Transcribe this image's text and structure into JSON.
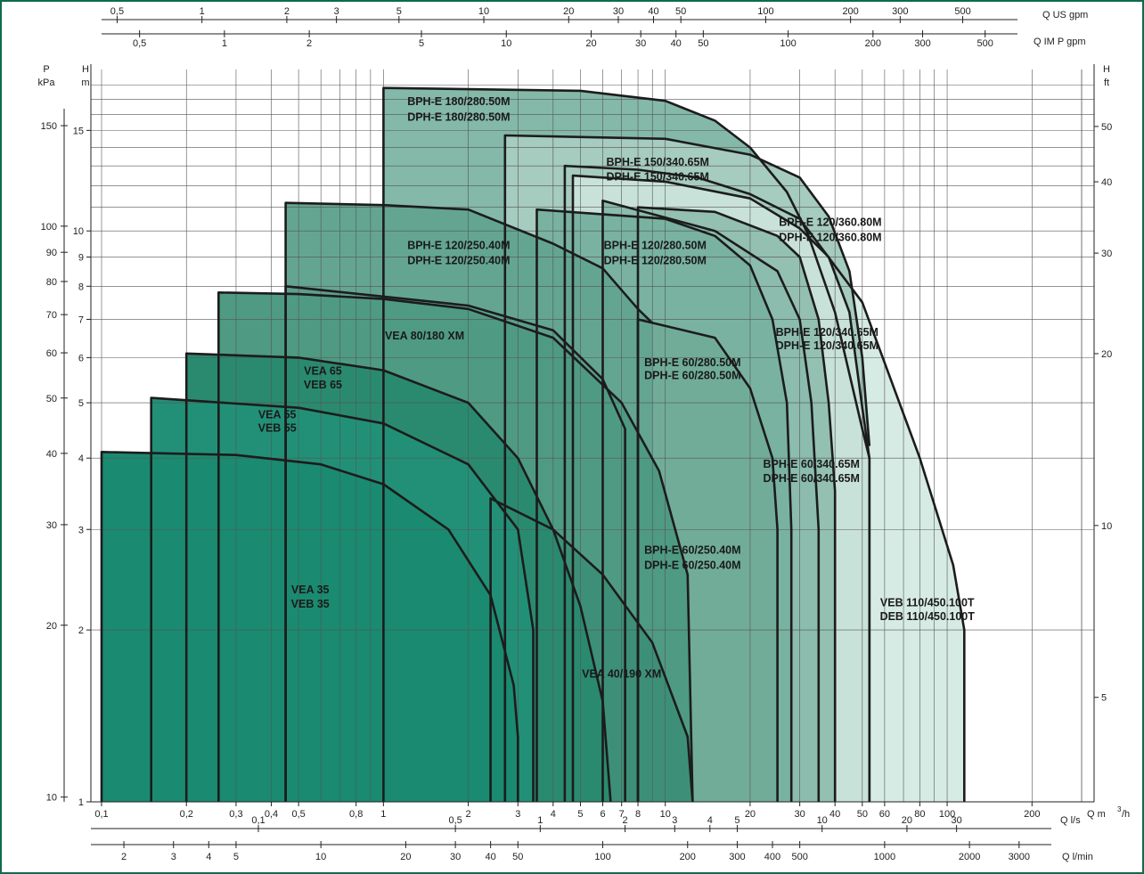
{
  "chart_data": {
    "type": "area",
    "x_axis": {
      "unit": "Q m³/h",
      "scale": "log",
      "range": [
        0.1,
        300
      ],
      "ticks": [
        "0,1",
        "0,2",
        "0,3",
        "0,4",
        "0,5",
        "0,8",
        "1",
        "2",
        "3",
        "4",
        "5",
        "6",
        "7",
        "8",
        "10",
        "20",
        "30",
        "40",
        "50",
        "60",
        "80",
        "100",
        "200"
      ]
    },
    "y_axis": {
      "unit": "H m",
      "scale": "log",
      "range": [
        1,
        18.5
      ],
      "ticks": [
        "1",
        "2",
        "3",
        "4",
        "5",
        "6",
        "7",
        "8",
        "9",
        "10",
        "15"
      ]
    },
    "secondary_axes": {
      "top_us": {
        "label": "Q US gpm",
        "ticks": [
          "0,5",
          "1",
          "2",
          "3",
          "5",
          "10",
          "20",
          "30",
          "40",
          "50",
          "100",
          "200",
          "300",
          "500"
        ]
      },
      "top_imp": {
        "label": "Q IM P gpm",
        "ticks": [
          "0,5",
          "1",
          "2",
          "5",
          "10",
          "20",
          "30",
          "40",
          "50",
          "100",
          "200",
          "300",
          "500"
        ]
      },
      "left_p": {
        "label": "P",
        "unit": "kPa",
        "ticks": [
          "10",
          "20",
          "30",
          "40",
          "50",
          "60",
          "70",
          "80",
          "90",
          "100",
          "150"
        ]
      },
      "right_ft": {
        "label": "H",
        "unit": "ft",
        "ticks": [
          "5",
          "10",
          "20",
          "30",
          "40",
          "50"
        ]
      },
      "bottom_ls": {
        "label": "Q l/s",
        "ticks": [
          "0,1",
          "0,5",
          "1",
          "2",
          "3",
          "4",
          "5",
          "10",
          "20",
          "30"
        ]
      },
      "bottom_lmin": {
        "label": "Q l/min",
        "ticks": [
          "2",
          "3",
          "4",
          "5",
          "10",
          "20",
          "30",
          "40",
          "50",
          "100",
          "200",
          "300",
          "400",
          "500",
          "1000",
          "2000",
          "3000"
        ]
      }
    },
    "grid": true,
    "series": [
      {
        "name": "VEB 110/450.100T DEB 110/450.100T",
        "color": "#d6ebe3",
        "points": [
          [
            4.4,
            13.0
          ],
          [
            8,
            12.8
          ],
          [
            13,
            12.4
          ],
          [
            20,
            11.6
          ],
          [
            30,
            10.5
          ],
          [
            50,
            7.5
          ],
          [
            80,
            4.0
          ],
          [
            105,
            2.6
          ],
          [
            115,
            2.0
          ],
          [
            115,
            1
          ]
        ]
      },
      {
        "name": "BPH-E 180/280.50M DPH-E 180/280.50M",
        "color": "#84b8a8",
        "points": [
          [
            1,
            17.8
          ],
          [
            5,
            17.6
          ],
          [
            10,
            16.9
          ],
          [
            15,
            15.6
          ],
          [
            20,
            14.0
          ],
          [
            27,
            11.7
          ],
          [
            32,
            9.9
          ],
          [
            40,
            7.2
          ],
          [
            50,
            4.5
          ],
          [
            53,
            4.0
          ],
          [
            53,
            1
          ]
        ]
      },
      {
        "name": "BPH-E 150/340.65M DPH-E 150/340.65M",
        "color": "#a6cbbf",
        "points": [
          [
            2.7,
            14.7
          ],
          [
            10,
            14.5
          ],
          [
            20,
            13.6
          ],
          [
            30,
            12.4
          ],
          [
            38,
            10.6
          ],
          [
            45,
            8.5
          ],
          [
            50,
            6.0
          ],
          [
            53,
            4.2
          ]
        ]
      },
      {
        "name": "BPH-E 120/360.80M DPH-E 120/360.80M",
        "color": "#c9e2d9",
        "points": [
          [
            4.7,
            12.5
          ],
          [
            10,
            12.2
          ],
          [
            20,
            11.4
          ],
          [
            30,
            10.1
          ],
          [
            38,
            9.0
          ],
          [
            45,
            7.2
          ],
          [
            50,
            4.9
          ],
          [
            53,
            4.0
          ],
          [
            53,
            1
          ]
        ]
      },
      {
        "name": "BPH-E 120/340.65M DPH-E 120/340.65M",
        "color": "#93c0b1",
        "points": [
          [
            8,
            11.0
          ],
          [
            15,
            10.8
          ],
          [
            25,
            9.8
          ],
          [
            30,
            9.0
          ],
          [
            35,
            7.0
          ],
          [
            38,
            5.0
          ],
          [
            40,
            3.5
          ],
          [
            40,
            1
          ]
        ]
      },
      {
        "name": "BPH-E 60/340.65M DPH-E 60/340.65M",
        "color": "#8bbcad",
        "points": [
          [
            6,
            11.3
          ],
          [
            15,
            10.0
          ],
          [
            25,
            8.5
          ],
          [
            30,
            7.0
          ],
          [
            33,
            5.0
          ],
          [
            35,
            3.0
          ],
          [
            35,
            1
          ]
        ]
      },
      {
        "name": "BPH-E 120/280.50M DPH-E 120/280.50M",
        "color": "#79b2a0",
        "points": [
          [
            3.5,
            10.9
          ],
          [
            10,
            10.5
          ],
          [
            15,
            9.8
          ],
          [
            20,
            8.7
          ],
          [
            24,
            7.0
          ],
          [
            27,
            5.0
          ],
          [
            28,
            3.0
          ],
          [
            28,
            1
          ]
        ]
      },
      {
        "name": "BPH-E 60/280.50M DPH-E 60/280.50M",
        "color": "#71ac99",
        "points": [
          [
            8,
            7.0
          ],
          [
            15,
            6.5
          ],
          [
            20,
            5.3
          ],
          [
            24,
            4.0
          ],
          [
            25,
            3.0
          ],
          [
            25,
            1
          ]
        ]
      },
      {
        "name": "BPH-E 120/250.40M DPH-E 120/250.40M",
        "color": "#64a591",
        "points": [
          [
            0.45,
            11.2
          ],
          [
            1,
            11.1
          ],
          [
            2,
            10.9
          ],
          [
            4,
            9.5
          ],
          [
            6,
            8.6
          ],
          [
            8,
            7.3
          ],
          [
            9,
            6.9
          ]
        ]
      },
      {
        "name": "BPH-E 60/250.40M DPH-E 60/250.40M",
        "color": "#5d9f8a",
        "points": [
          [
            0.45,
            8.0
          ],
          [
            2,
            7.4
          ],
          [
            4,
            6.7
          ],
          [
            6,
            5.5
          ],
          [
            7.2,
            4.5
          ],
          [
            7.2,
            2.4
          ],
          [
            7.2,
            1
          ]
        ]
      },
      {
        "name": "VEA 80/180 XM",
        "color": "#4f9a82",
        "points": [
          [
            0.26,
            7.8
          ],
          [
            0.5,
            7.75
          ],
          [
            1,
            7.6
          ],
          [
            2,
            7.3
          ],
          [
            4,
            6.5
          ],
          [
            7,
            5.0
          ],
          [
            9.5,
            3.8
          ],
          [
            12,
            2.5
          ],
          [
            12.5,
            1
          ]
        ]
      },
      {
        "name": "VEA 40/190 XM",
        "color": "#3d9077",
        "points": [
          [
            2.4,
            3.4
          ],
          [
            4,
            3.0
          ],
          [
            6,
            2.5
          ],
          [
            9,
            1.9
          ],
          [
            12,
            1.3
          ],
          [
            12.5,
            1
          ]
        ]
      },
      {
        "name": "VEA 65 VEB 65",
        "color": "#2a8a6f",
        "points": [
          [
            0.2,
            6.1
          ],
          [
            0.5,
            6.0
          ],
          [
            1,
            5.7
          ],
          [
            2,
            5.0
          ],
          [
            3,
            4.0
          ],
          [
            4,
            3.0
          ],
          [
            5,
            2.2
          ],
          [
            6,
            1.5
          ],
          [
            6.4,
            1
          ]
        ]
      },
      {
        "name": "VEA 55 VEB 55",
        "color": "#229077",
        "points": [
          [
            0.15,
            5.1
          ],
          [
            0.5,
            4.9
          ],
          [
            1,
            4.6
          ],
          [
            2,
            3.9
          ],
          [
            3,
            3.0
          ],
          [
            3.4,
            2.0
          ],
          [
            3.4,
            1
          ]
        ]
      },
      {
        "name": "VEA 35 VEB 35",
        "color": "#1a8a70",
        "points": [
          [
            0.1,
            4.1
          ],
          [
            0.3,
            4.05
          ],
          [
            0.6,
            3.9
          ],
          [
            1,
            3.6
          ],
          [
            1.7,
            3.0
          ],
          [
            2.4,
            2.3
          ],
          [
            2.9,
            1.6
          ],
          [
            3,
            1.3
          ],
          [
            3,
            1
          ]
        ]
      }
    ],
    "labels": [
      {
        "text": "BPH-E 180/280.50M",
        "x": 1.85,
        "y": 16.6
      },
      {
        "text": "DPH-E 180/280.50M",
        "x": 1.85,
        "y": 15.6
      },
      {
        "text": "BPH-E 150/340.65M",
        "x": 9.4,
        "y": 13.0
      },
      {
        "text": "DPH-E 150/340.65M",
        "x": 9.4,
        "y": 12.25
      },
      {
        "text": "BPH-E 120/360.80M",
        "x": 38.5,
        "y": 10.2
      },
      {
        "text": "DPH-E 120/360.80M",
        "x": 38.5,
        "y": 9.6
      },
      {
        "text": "BPH-E 120/250.40M",
        "x": 1.85,
        "y": 9.3
      },
      {
        "text": "DPH-E 120/250.40M",
        "x": 1.85,
        "y": 8.75
      },
      {
        "text": "BPH-E 120/280.50M",
        "x": 9.2,
        "y": 9.3
      },
      {
        "text": "DPH-E 120/280.50M",
        "x": 9.2,
        "y": 8.75
      },
      {
        "text": "BPH-E 120/340.65M",
        "x": 37.5,
        "y": 6.55
      },
      {
        "text": "DPH-E 120/340.65M",
        "x": 37.5,
        "y": 6.2
      },
      {
        "text": "BPH-E 60/280.50M",
        "x": 12.5,
        "y": 5.8
      },
      {
        "text": "DPH-E 60/280.50M",
        "x": 12.5,
        "y": 5.5
      },
      {
        "text": "VEA 80/180 XM",
        "x": 1.4,
        "y": 6.45
      },
      {
        "text": "VEA 65",
        "x": 0.61,
        "y": 5.6
      },
      {
        "text": "VEB 65",
        "x": 0.61,
        "y": 5.3
      },
      {
        "text": "VEA 55",
        "x": 0.42,
        "y": 4.7
      },
      {
        "text": "VEB 55",
        "x": 0.42,
        "y": 4.45
      },
      {
        "text": "BPH-E 60/340.65M",
        "x": 33,
        "y": 3.85
      },
      {
        "text": "DPH-E 60/340.65M",
        "x": 33,
        "y": 3.63
      },
      {
        "text": "BPH-E 60/250.40M",
        "x": 12.5,
        "y": 2.72
      },
      {
        "text": "DPH-E 60/250.40M",
        "x": 12.5,
        "y": 2.56
      },
      {
        "text": "VEB 110/450.100T",
        "x": 85,
        "y": 2.2
      },
      {
        "text": "DEB 110/450.100T",
        "x": 85,
        "y": 2.08
      },
      {
        "text": "VEA 35",
        "x": 0.55,
        "y": 2.32
      },
      {
        "text": "VEB 35",
        "x": 0.55,
        "y": 2.19
      },
      {
        "text": "VEA 40/190 XM",
        "x": 7.0,
        "y": 1.65
      }
    ]
  }
}
